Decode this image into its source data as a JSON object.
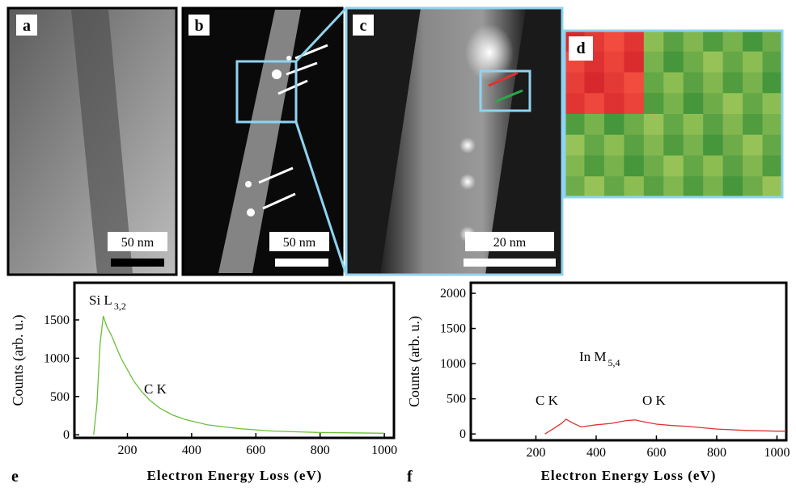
{
  "panels": {
    "a": {
      "label": "a",
      "scale": "50 nm"
    },
    "b": {
      "label": "b",
      "scale": "50 nm"
    },
    "c": {
      "label": "c",
      "scale": "20 nm"
    },
    "d": {
      "label": "d"
    }
  },
  "chart_data": [
    {
      "type": "line",
      "panel_label": "e",
      "xlabel": "Electron Energy Loss (eV)",
      "ylabel": "Counts (arb. u.)",
      "annotations": [
        {
          "text": "Si L",
          "sub": "3,2"
        },
        {
          "text": "C K"
        }
      ],
      "x": [
        95,
        105,
        115,
        125,
        135,
        150,
        165,
        180,
        200,
        220,
        245,
        270,
        300,
        340,
        380,
        450,
        550,
        650,
        800,
        900,
        1000
      ],
      "series": [
        {
          "color": "#6abf3a",
          "values": [
            0,
            400,
            1200,
            1550,
            1420,
            1300,
            1150,
            1000,
            850,
            700,
            560,
            450,
            350,
            260,
            200,
            130,
            80,
            50,
            30,
            25,
            20
          ]
        }
      ],
      "xlim": [
        35,
        1030
      ],
      "ylim": [
        -40,
        1985
      ],
      "xticks": [
        200,
        400,
        600,
        800,
        1000
      ],
      "yticks": [
        0,
        500,
        1000,
        1500
      ]
    },
    {
      "type": "line",
      "panel_label": "f",
      "xlabel": "Electron Energy Loss (eV)",
      "ylabel": "Counts (arb. u.)",
      "annotations": [
        {
          "text": "In M",
          "sub": "5,4"
        },
        {
          "text": "C K"
        },
        {
          "text": "O K"
        }
      ],
      "x": [
        230,
        260,
        285,
        300,
        320,
        350,
        400,
        450,
        500,
        530,
        550,
        600,
        650,
        700,
        800,
        900,
        1000,
        1030
      ],
      "series": [
        {
          "color": "#e0312f",
          "values": [
            0,
            80,
            150,
            210,
            160,
            100,
            130,
            150,
            190,
            200,
            180,
            140,
            120,
            110,
            70,
            50,
            40,
            40
          ]
        }
      ],
      "xlim": [
        -16,
        1031
      ],
      "ylim": [
        -90,
        2150
      ],
      "xticks": [
        200,
        400,
        600,
        800,
        1000
      ],
      "yticks": [
        0,
        500,
        1000,
        1500,
        2000
      ]
    }
  ]
}
